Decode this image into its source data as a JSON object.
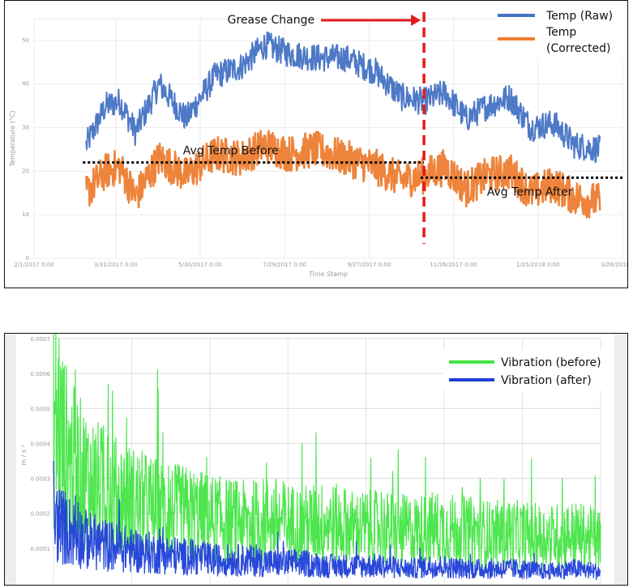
{
  "chart_data": [
    {
      "type": "line",
      "xlabel": "Time Stamp",
      "ylabel": "Temperature (°C)",
      "x_ticks": [
        "2/1/2017 0:00",
        "3/31/2017 0:00",
        "5/30/2017 0:00",
        "7/29/2017 0:00",
        "9/27/2017 0:00",
        "11/26/2017 0:00",
        "1/25/2018 0:00",
        "3/26/2018 0:00"
      ],
      "y_ticks": [
        "0",
        "10",
        "20",
        "30",
        "40",
        "50"
      ],
      "ylim": [
        0,
        55
      ],
      "grid": true,
      "legend_position": "top-right",
      "series": [
        {
          "name": "Temp (Raw)",
          "color": "#4472c4",
          "x": [
            "3/10/2017",
            "3/24/2017",
            "4/3/2017",
            "4/14/2017",
            "5/1/2017",
            "5/20/2017",
            "6/10/2017",
            "6/28/2017",
            "7/15/2017",
            "8/1/2017",
            "8/20/2017",
            "9/10/2017",
            "10/1/2017",
            "10/20/2017",
            "11/5/2017",
            "11/20/2017",
            "12/5/2017",
            "12/20/2017",
            "1/5/2018",
            "1/20/2018",
            "2/5/2018",
            "2/20/2018",
            "3/10/2018"
          ],
          "y": [
            26,
            35,
            36,
            29,
            40,
            32,
            42,
            44,
            49,
            47,
            46,
            46,
            43,
            37,
            36,
            38,
            32,
            35,
            37,
            30,
            31,
            26,
            25
          ]
        },
        {
          "name": "Temp (Corrected)",
          "color": "#ed7d31",
          "x": [
            "3/10/2017",
            "3/24/2017",
            "4/3/2017",
            "4/14/2017",
            "5/1/2017",
            "5/20/2017",
            "6/10/2017",
            "6/28/2017",
            "7/15/2017",
            "8/1/2017",
            "8/20/2017",
            "9/10/2017",
            "10/1/2017",
            "10/20/2017",
            "11/5/2017",
            "11/20/2017",
            "12/5/2017",
            "12/20/2017",
            "1/5/2018",
            "1/20/2018",
            "2/5/2018",
            "2/20/2018",
            "3/10/2018"
          ],
          "y": [
            15,
            20,
            21,
            14,
            23,
            19,
            24,
            23,
            26,
            24,
            25,
            23,
            21,
            18,
            19,
            21,
            16,
            19,
            20,
            15,
            17,
            14,
            13
          ]
        }
      ],
      "reference_lines": [
        {
          "label": "Avg Temp Before",
          "y": 22,
          "x_start": "3/10/2017",
          "x_end": "11/5/2017",
          "style": "dotted",
          "color": "#000000"
        },
        {
          "label": "Avg Temp After",
          "y": 18.5,
          "x_start": "11/5/2017",
          "x_end": "3/10/2018",
          "style": "dotted",
          "color": "#000000"
        }
      ],
      "events": [
        {
          "label": "Grease Change",
          "x": "11/5/2017",
          "style": "dashed",
          "color": "#e31a1c"
        }
      ]
    },
    {
      "type": "line",
      "ylabel": "m / s ²",
      "y_ticks": [
        "0.0001",
        "0.0002",
        "0.0003",
        "0.0004",
        "0.0005",
        "0.0006",
        "0.0007"
      ],
      "ylim": [
        0,
        0.0007
      ],
      "grid": true,
      "legend_position": "top-right",
      "series": [
        {
          "name": "Vibration (before)",
          "color": "#44e544",
          "x": [
            0,
            0.03,
            0.06,
            0.1,
            0.15,
            0.2,
            0.25,
            0.3,
            0.35,
            0.4,
            0.45,
            0.5,
            0.55,
            0.6,
            0.65,
            0.7,
            0.75,
            0.8,
            0.85,
            0.9,
            0.95,
            1.0
          ],
          "y": [
            0.00058,
            0.00042,
            0.00036,
            0.00031,
            0.00028,
            0.00025,
            0.00024,
            0.00022,
            0.00021,
            0.00022,
            0.0002,
            0.00021,
            0.00019,
            0.00019,
            0.00018,
            0.00019,
            0.00018,
            0.00017,
            0.00017,
            0.00016,
            0.00017,
            0.00015
          ],
          "peaks": [
            [
              0.01,
              0.0007
            ],
            [
              0.04,
              0.00061
            ],
            [
              0.1,
              0.00057
            ],
            [
              0.19,
              0.00061
            ],
            [
              0.2,
              0.00043
            ],
            [
              0.48,
              0.00043
            ],
            [
              0.28,
              0.00036
            ],
            [
              0.62,
              0.00032
            ],
            [
              0.68,
              0.00036
            ],
            [
              0.78,
              0.0003
            ],
            [
              0.93,
              0.0003
            ]
          ]
        },
        {
          "name": "Vibration (after)",
          "color": "#1f3fd8",
          "x": [
            0,
            0.03,
            0.06,
            0.1,
            0.15,
            0.2,
            0.25,
            0.3,
            0.35,
            0.4,
            0.45,
            0.5,
            0.55,
            0.6,
            0.65,
            0.7,
            0.75,
            0.8,
            0.85,
            0.9,
            0.95,
            1.0
          ],
          "y": [
            0.00022,
            0.00018,
            0.00015,
            0.00013,
            0.00011,
            0.0001,
            9e-05,
            8e-05,
            8e-05,
            7e-05,
            7e-05,
            6e-05,
            6e-05,
            6e-05,
            5e-05,
            6e-05,
            5e-05,
            5e-05,
            5e-05,
            4e-05,
            5e-05,
            4e-05
          ],
          "peaks": [
            [
              0.0,
              0.00035
            ],
            [
              0.04,
              0.00025
            ],
            [
              0.12,
              0.00024
            ],
            [
              0.2,
              0.00016
            ],
            [
              0.42,
              0.00012
            ],
            [
              0.67,
              0.0001
            ]
          ]
        }
      ]
    }
  ]
}
